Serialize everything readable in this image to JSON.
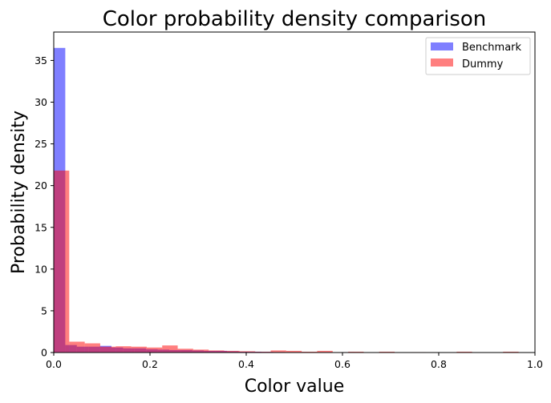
{
  "chart_data": {
    "type": "histogram",
    "title": "Color probability density comparison",
    "xlabel": "Color value",
    "ylabel": "Probability density",
    "xlim": [
      0,
      1
    ],
    "ylim": [
      0,
      38.4
    ],
    "xticks": [
      "0.0",
      "0.2",
      "0.4",
      "0.6",
      "0.8",
      "1.0"
    ],
    "yticks": [
      "0",
      "5",
      "10",
      "15",
      "20",
      "25",
      "30",
      "35"
    ],
    "grid": false,
    "legend_position": "top-right",
    "series": [
      {
        "name": "Benchmark",
        "color": "#0000ff",
        "alpha": 0.5,
        "bins": [
          [
            0.0,
            0.024,
            36.5
          ],
          [
            0.024,
            0.048,
            0.9
          ],
          [
            0.048,
            0.072,
            0.7
          ],
          [
            0.072,
            0.096,
            0.7
          ],
          [
            0.096,
            0.12,
            0.8
          ],
          [
            0.12,
            0.144,
            0.6
          ],
          [
            0.144,
            0.168,
            0.5
          ],
          [
            0.168,
            0.192,
            0.5
          ],
          [
            0.192,
            0.216,
            0.4
          ],
          [
            0.216,
            0.24,
            0.35
          ],
          [
            0.24,
            0.264,
            0.3
          ],
          [
            0.264,
            0.288,
            0.3
          ],
          [
            0.288,
            0.312,
            0.25
          ],
          [
            0.312,
            0.336,
            0.2
          ],
          [
            0.336,
            0.36,
            0.2
          ],
          [
            0.36,
            0.384,
            0.15
          ],
          [
            0.384,
            0.408,
            0.1
          ],
          [
            0.408,
            0.432,
            0.1
          ],
          [
            0.432,
            0.456,
            0.08
          ],
          [
            0.456,
            0.48,
            0.06
          ],
          [
            0.48,
            0.504,
            0.05
          ],
          [
            0.504,
            0.528,
            0.05
          ],
          [
            0.528,
            0.552,
            0.04
          ],
          [
            0.552,
            0.576,
            0.05
          ],
          [
            0.576,
            0.6,
            0.04
          ],
          [
            0.6,
            0.624,
            0.05
          ],
          [
            0.624,
            0.648,
            0.03
          ],
          [
            0.648,
            0.672,
            0.03
          ],
          [
            0.672,
            0.696,
            0.04
          ],
          [
            0.696,
            0.72,
            0.03
          ],
          [
            0.72,
            0.744,
            0.03
          ],
          [
            0.744,
            0.768,
            0.02
          ],
          [
            0.768,
            0.792,
            0.02
          ],
          [
            0.792,
            0.816,
            0.02
          ],
          [
            0.816,
            0.84,
            0.02
          ],
          [
            0.84,
            0.864,
            0.03
          ],
          [
            0.864,
            0.888,
            0.02
          ],
          [
            0.888,
            0.912,
            0.01
          ],
          [
            0.912,
            0.936,
            0.01
          ],
          [
            0.936,
            0.96,
            0.02
          ]
        ]
      },
      {
        "name": "Dummy",
        "color": "#ff0000",
        "alpha": 0.5,
        "bins": [
          [
            0.0,
            0.0322,
            21.8
          ],
          [
            0.0322,
            0.0644,
            1.3
          ],
          [
            0.0644,
            0.0966,
            1.1
          ],
          [
            0.0966,
            0.1288,
            0.7
          ],
          [
            0.1288,
            0.161,
            0.75
          ],
          [
            0.161,
            0.1932,
            0.7
          ],
          [
            0.1932,
            0.2254,
            0.6
          ],
          [
            0.2254,
            0.2576,
            0.85
          ],
          [
            0.2576,
            0.2898,
            0.45
          ],
          [
            0.2898,
            0.322,
            0.35
          ],
          [
            0.322,
            0.3542,
            0.25
          ],
          [
            0.3542,
            0.3864,
            0.2
          ],
          [
            0.3864,
            0.4186,
            0.15
          ],
          [
            0.4186,
            0.4508,
            0.1
          ],
          [
            0.4508,
            0.483,
            0.25
          ],
          [
            0.483,
            0.5152,
            0.2
          ],
          [
            0.5152,
            0.5474,
            0.1
          ],
          [
            0.5474,
            0.5796,
            0.2
          ],
          [
            0.5796,
            0.6118,
            0.05
          ],
          [
            0.6118,
            0.644,
            0.1
          ],
          [
            0.644,
            0.6762,
            0.03
          ],
          [
            0.6762,
            0.7084,
            0.1
          ],
          [
            0.7084,
            0.7406,
            0.03
          ],
          [
            0.7406,
            0.7728,
            0.05
          ],
          [
            0.7728,
            0.805,
            0.02
          ],
          [
            0.805,
            0.8372,
            0.02
          ],
          [
            0.8372,
            0.8694,
            0.1
          ],
          [
            0.8694,
            0.9016,
            0.02
          ],
          [
            0.9016,
            0.9338,
            0.02
          ],
          [
            0.9338,
            0.966,
            0.1
          ]
        ]
      }
    ]
  }
}
